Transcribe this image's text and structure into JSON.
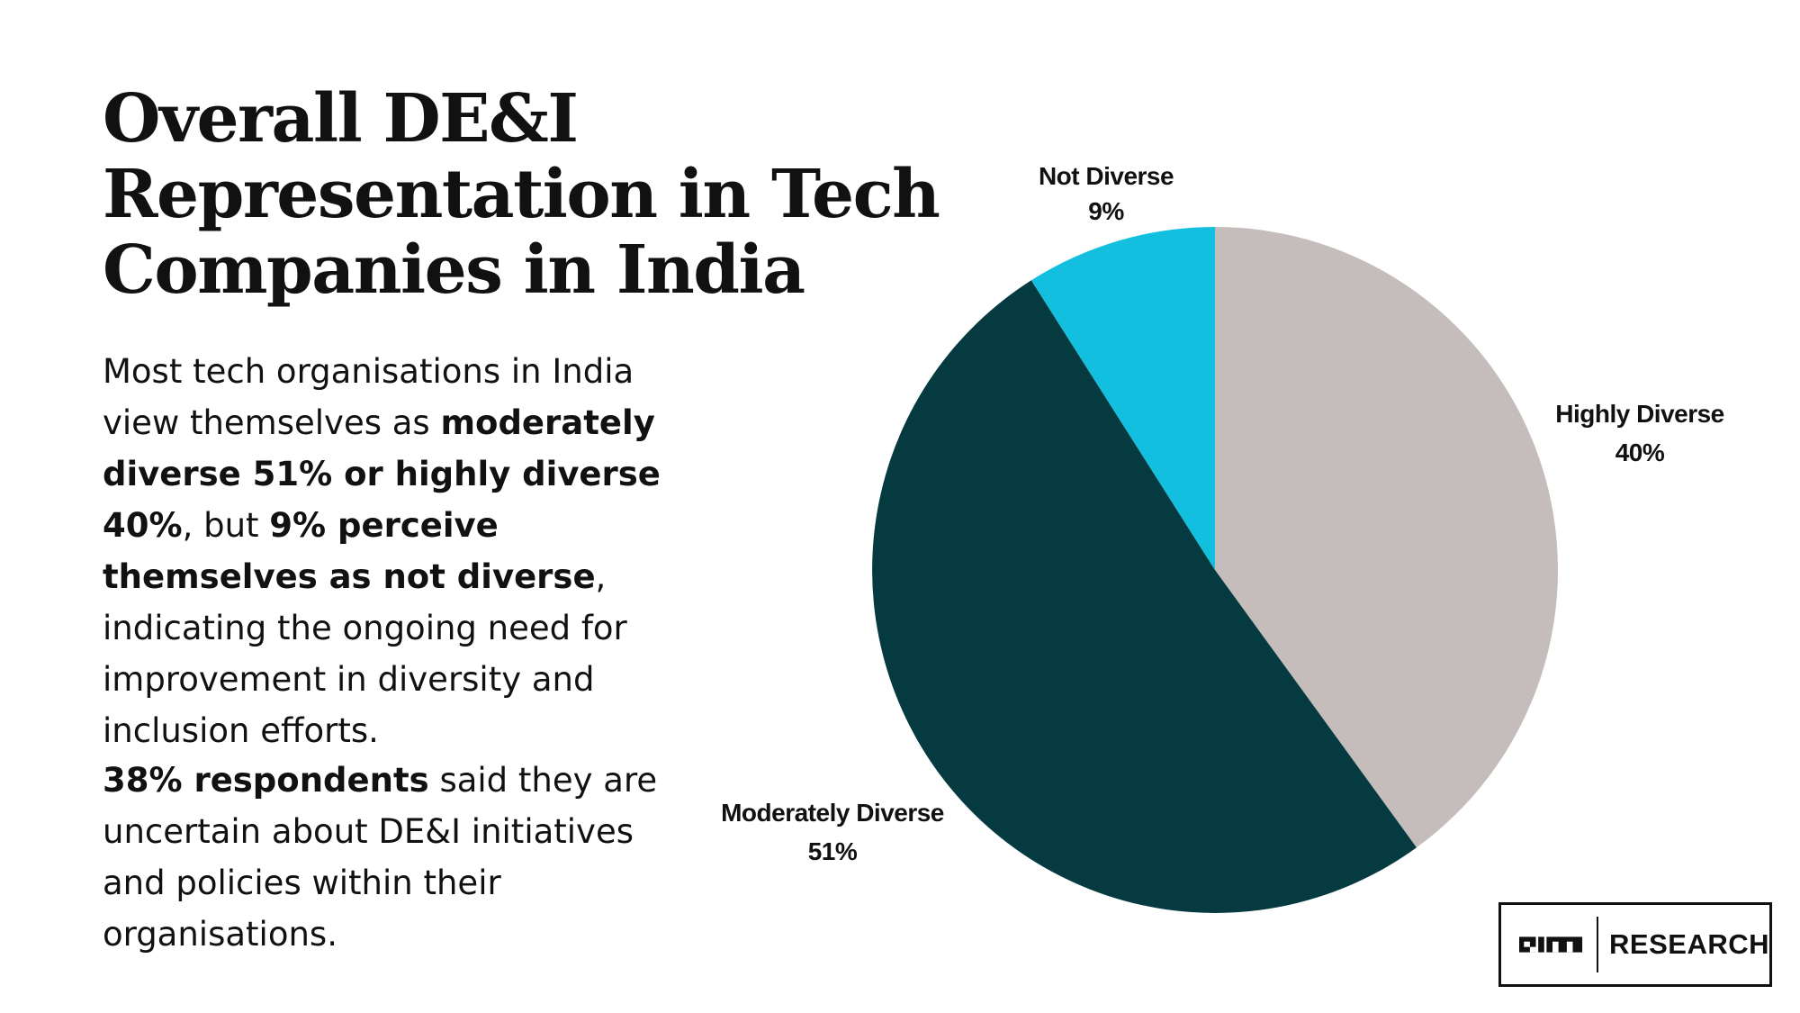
{
  "title": "Overall DE&I Representation in Tech Companies in India",
  "paragraph1": {
    "t1": "Most tech organisations in India view themselves as ",
    "b1": "moderately diverse 51% or highly diverse 40%",
    "t2": ", but ",
    "b2": "9% perceive themselves as not diverse",
    "t3": ", indicating the ongoing need for improvement in diversity and inclusion efforts."
  },
  "paragraph2": {
    "b1": "38% respondents",
    "t1": " said they are uncertain about DE&I initiatives and policies within their organisations."
  },
  "logo": {
    "mark_icon": "aim-logo-icon",
    "text": "RESEARCH"
  },
  "chart_data": {
    "type": "pie",
    "start": "12 o'clock, clockwise",
    "slices": [
      {
        "name": "Highly Diverse",
        "label": "40%",
        "value": 40,
        "color": "#c5bdbb"
      },
      {
        "name": "Moderately Diverse",
        "label": "51%",
        "value": 51,
        "color": "#053a40"
      },
      {
        "name": "Not Diverse",
        "label": "9%",
        "value": 9,
        "color": "#12bfde"
      }
    ]
  }
}
